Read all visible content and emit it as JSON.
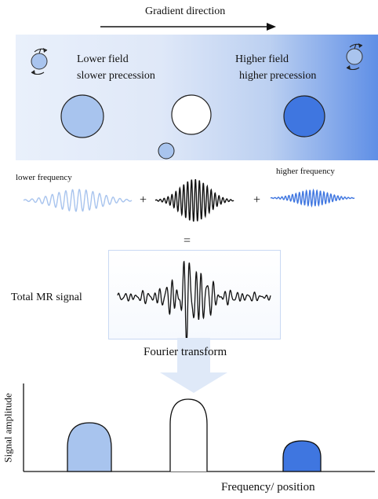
{
  "header": {
    "gradient_direction": "Gradient direction"
  },
  "field_panel": {
    "left_line1": "Lower field",
    "left_line2": "slower precession",
    "right_line1": "Higher field",
    "right_line2": "higher precession"
  },
  "signals": {
    "lower_frequency": "lower frequency",
    "higher_frequency": "higher frequency",
    "plus": "+",
    "equals": "="
  },
  "total": {
    "label": "Total MR signal"
  },
  "transform": {
    "label": "Fourier transform"
  },
  "spectrum": {
    "ylabel": "Signal amplitude",
    "xlabel": "Frequency/ position"
  },
  "colors": {
    "blue_dark": "#3f76e0",
    "blue_light": "#a8c4ee",
    "panel_fade": "#e8f0fc",
    "arrow_fill": "#dfe9f8"
  }
}
